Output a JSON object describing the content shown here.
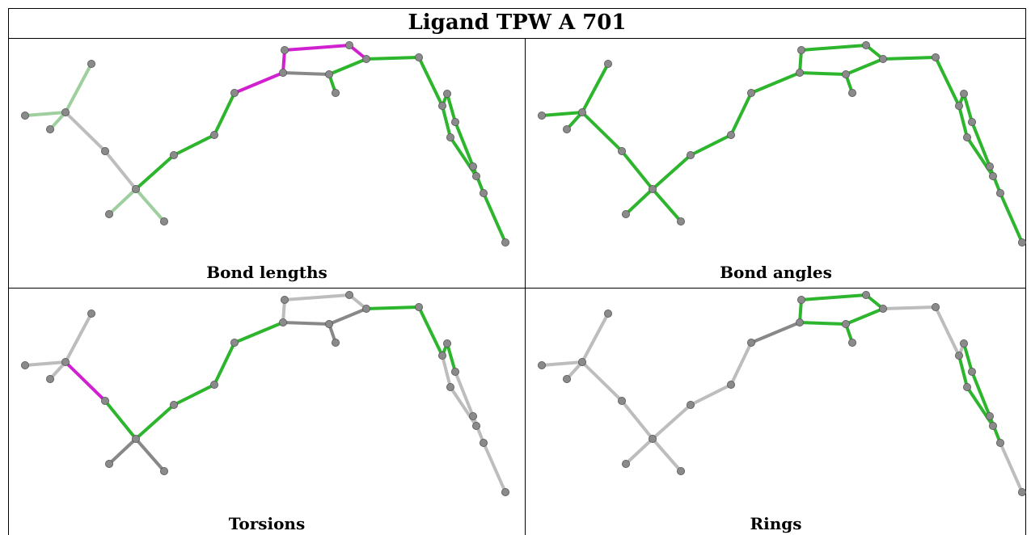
{
  "title": "Ligand TPW A 701",
  "panels": [
    {
      "label": "Bond lengths",
      "colors": {
        "h1": "#9fcf9f",
        "h2": "#9fcf9f",
        "h3": "#9fcf9f",
        "b1": "#bdbdbd",
        "b2": "#bdbdbd",
        "b3": "#9fcf9f",
        "b4": "#9fcf9f",
        "b5": "#9fcf9f",
        "c1": "#2db52d",
        "c2": "#2db52d",
        "c3": "#2db52d",
        "c4": "#2db52d",
        "c5": "#2db52d",
        "c6": "#d020d0",
        "r1": "#d020d0",
        "r2": "#d020d0",
        "r3": "#d020d0",
        "r4": "#2db52d",
        "r5": "#2db52d",
        "r6": "#888888",
        "s1": "#2db52d",
        "s2": "#2db52d",
        "s3": "#2db52d",
        "s4": "#2db52d",
        "s5": "#2db52d",
        "s6": "#2db52d",
        "s7": "#2db52d",
        "s8": "#2db52d"
      }
    },
    {
      "label": "Bond angles",
      "colors": {
        "h1": "#2db52d",
        "h2": "#2db52d",
        "h3": "#2db52d",
        "b1": "#2db52d",
        "b2": "#2db52d",
        "b3": "#2db52d",
        "b4": "#2db52d",
        "b5": "#2db52d",
        "c1": "#2db52d",
        "c2": "#2db52d",
        "c3": "#2db52d",
        "c4": "#bdbdbd",
        "c5": "#2db52d",
        "c6": "#2db52d",
        "r1": "#2db52d",
        "r2": "#2db52d",
        "r3": "#2db52d",
        "r4": "#2db52d",
        "r5": "#2db52d",
        "r6": "#2db52d",
        "s1": "#2db52d",
        "s2": "#2db52d",
        "s3": "#2db52d",
        "s4": "#2db52d",
        "s5": "#2db52d",
        "s6": "#2db52d",
        "s7": "#2db52d",
        "s8": "#2db52d"
      }
    },
    {
      "label": "Torsions",
      "colors": {
        "h1": "#bdbdbd",
        "h2": "#bdbdbd",
        "h3": "#bdbdbd",
        "b1": "#d020d0",
        "b2": "#2db52d",
        "b3": "#888888",
        "b4": "#888888",
        "b5": "#888888",
        "c1": "#2db52d",
        "c2": "#2db52d",
        "c3": "#2db52d",
        "c4": "#2db52d",
        "c5": "#2db52d",
        "c6": "#2db52d",
        "r1": "#bdbdbd",
        "r2": "#bdbdbd",
        "r3": "#bdbdbd",
        "r4": "#888888",
        "r5": "#888888",
        "r6": "#888888",
        "s1": "#2db52d",
        "s2": "#2db52d",
        "s3": "#2db52d",
        "s4": "#bdbdbd",
        "s5": "#bdbdbd",
        "s6": "#bdbdbd",
        "s7": "#bdbdbd",
        "s8": "#bdbdbd"
      }
    },
    {
      "label": "Rings",
      "colors": {
        "h1": "#bdbdbd",
        "h2": "#bdbdbd",
        "h3": "#bdbdbd",
        "b1": "#bdbdbd",
        "b2": "#bdbdbd",
        "b3": "#bdbdbd",
        "b4": "#bdbdbd",
        "b5": "#bdbdbd",
        "c1": "#bdbdbd",
        "c2": "#bdbdbd",
        "c3": "#bdbdbd",
        "c4": "#bdbdbd",
        "c5": "#bdbdbd",
        "c6": "#888888",
        "r1": "#2db52d",
        "r2": "#2db52d",
        "r3": "#2db52d",
        "r4": "#2db52d",
        "r5": "#2db52d",
        "r6": "#2db52d",
        "s1": "#bdbdbd",
        "s2": "#bdbdbd",
        "s3": "#2db52d",
        "s4": "#2db52d",
        "s5": "#2db52d",
        "s6": "#2db52d",
        "s7": "#2db52d",
        "s8": "#bdbdbd"
      }
    }
  ]
}
